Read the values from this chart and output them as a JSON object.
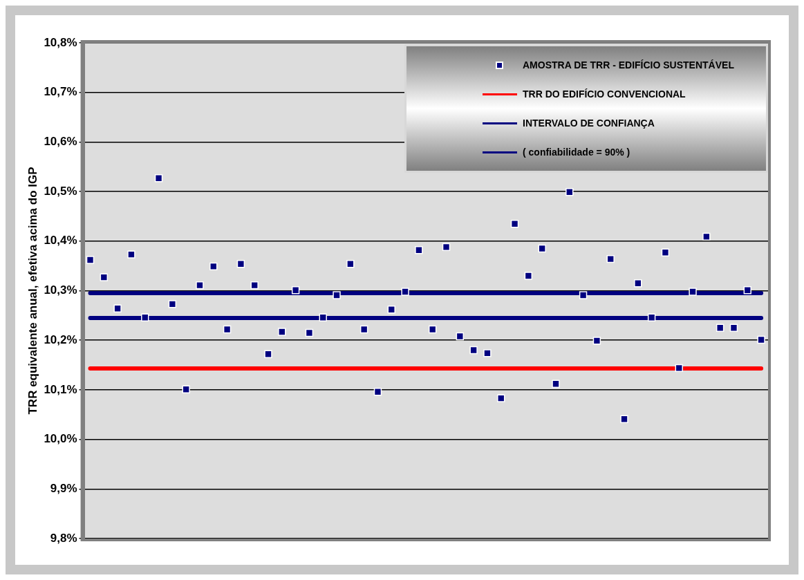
{
  "chart_data": {
    "type": "scatter",
    "ylabel": "TRR equivalente anual, efetiva acima do IGP",
    "categories": [
      null,
      null,
      null,
      null,
      null,
      null,
      null,
      null,
      null,
      null,
      null,
      null,
      null,
      null,
      null,
      null,
      null,
      null,
      null,
      null,
      null,
      null,
      null,
      null,
      null,
      null,
      null,
      null,
      null,
      null,
      null,
      null,
      null,
      null,
      null,
      null,
      null,
      null,
      null,
      null,
      null,
      null,
      null,
      null,
      null,
      null,
      null,
      null,
      null,
      null
    ],
    "series": [
      {
        "name": "AMOSTRA DE TRR - EDIFÍCIO SUSTENTÁVEL",
        "marker": "square",
        "color": "#000080",
        "values": [
          10.362,
          10.327,
          10.264,
          10.373,
          10.246,
          10.527,
          10.273,
          10.101,
          10.311,
          10.349,
          10.222,
          10.354,
          10.311,
          10.172,
          10.217,
          10.301,
          10.215,
          10.246,
          10.291,
          10.354,
          10.222,
          10.096,
          10.262,
          10.298,
          10.382,
          10.222,
          10.388,
          10.208,
          10.18,
          10.174,
          10.083,
          10.435,
          10.33,
          10.385,
          10.112,
          10.499,
          10.291,
          10.199,
          10.364,
          10.041,
          10.315,
          10.246,
          10.377,
          10.144,
          10.298,
          10.409,
          10.225,
          10.225,
          10.301,
          10.201
        ]
      },
      {
        "name": "TRR DO EDIFÍCIO CONVENCIONAL",
        "type": "line",
        "marker": "none",
        "color": "#ff0000",
        "values": [
          10.143,
          10.143,
          10.143,
          10.143,
          10.143,
          10.143,
          10.143,
          10.143,
          10.143,
          10.143,
          10.143,
          10.143,
          10.143,
          10.143,
          10.143,
          10.143,
          10.143,
          10.143,
          10.143,
          10.143,
          10.143,
          10.143,
          10.143,
          10.143,
          10.143,
          10.143,
          10.143,
          10.143,
          10.143,
          10.143,
          10.143,
          10.143,
          10.143,
          10.143,
          10.143,
          10.143,
          10.143,
          10.143,
          10.143,
          10.143,
          10.143,
          10.143,
          10.143,
          10.143,
          10.143,
          10.143,
          10.143,
          10.143,
          10.143,
          10.143
        ]
      },
      {
        "name": "INTERVALO DE CONFIANÇA",
        "type": "line",
        "marker": "none",
        "color": "#000080",
        "values": [
          10.295,
          10.295,
          10.295,
          10.295,
          10.295,
          10.295,
          10.295,
          10.295,
          10.295,
          10.295,
          10.295,
          10.295,
          10.295,
          10.295,
          10.295,
          10.295,
          10.295,
          10.295,
          10.295,
          10.295,
          10.295,
          10.295,
          10.295,
          10.295,
          10.295,
          10.295,
          10.295,
          10.295,
          10.295,
          10.295,
          10.295,
          10.295,
          10.295,
          10.295,
          10.295,
          10.295,
          10.295,
          10.295,
          10.295,
          10.295,
          10.295,
          10.295,
          10.295,
          10.295,
          10.295,
          10.295,
          10.295,
          10.295,
          10.295,
          10.295
        ]
      },
      {
        "name": "( confiabilidade = 90% )",
        "type": "line",
        "marker": "none",
        "color": "#000080",
        "values": [
          10.245,
          10.245,
          10.245,
          10.245,
          10.245,
          10.245,
          10.245,
          10.245,
          10.245,
          10.245,
          10.245,
          10.245,
          10.245,
          10.245,
          10.245,
          10.245,
          10.245,
          10.245,
          10.245,
          10.245,
          10.245,
          10.245,
          10.245,
          10.245,
          10.245,
          10.245,
          10.245,
          10.245,
          10.245,
          10.245,
          10.245,
          10.245,
          10.245,
          10.245,
          10.245,
          10.245,
          10.245,
          10.245,
          10.245,
          10.245,
          10.245,
          10.245,
          10.245,
          10.245,
          10.245,
          10.245,
          10.245,
          10.245,
          10.245,
          10.245
        ]
      }
    ],
    "ylim": [
      9.8,
      10.8
    ],
    "yticks": [
      {
        "value": 9.8,
        "label": "9,8%"
      },
      {
        "value": 9.9,
        "label": "9,9%"
      },
      {
        "value": 10.0,
        "label": "10,0%"
      },
      {
        "value": 10.1,
        "label": "10,1%"
      },
      {
        "value": 10.2,
        "label": "10,2%"
      },
      {
        "value": 10.3,
        "label": "10,3%"
      },
      {
        "value": 10.4,
        "label": "10,4%"
      },
      {
        "value": 10.5,
        "label": "10,5%"
      },
      {
        "value": 10.6,
        "label": "10,6%"
      },
      {
        "value": 10.7,
        "label": "10,7%"
      },
      {
        "value": 10.8,
        "label": "10,8%"
      }
    ],
    "grid": "y",
    "legend": "top right",
    "line_style": "solid",
    "tick_labels": "y"
  }
}
